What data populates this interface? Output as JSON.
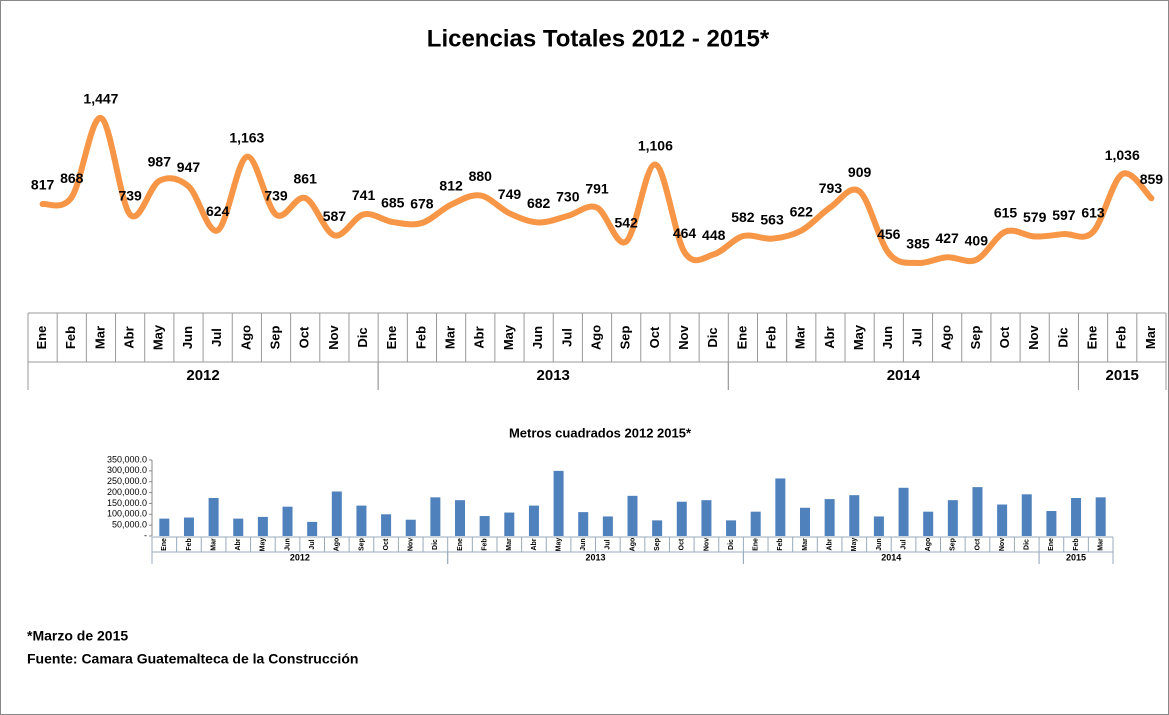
{
  "chart_data": [
    {
      "type": "line",
      "title": "Licencias Totales 2012 - 2015*",
      "color": "#f79646",
      "categories": [
        "Ene",
        "Feb",
        "Mar",
        "Abr",
        "May",
        "Jun",
        "Jul",
        "Ago",
        "Sep",
        "Oct",
        "Nov",
        "Dic",
        "Ene",
        "Feb",
        "Mar",
        "Abr",
        "May",
        "Jun",
        "Jul",
        "Ago",
        "Sep",
        "Oct",
        "Nov",
        "Dic",
        "Ene",
        "Feb",
        "Mar",
        "Abr",
        "May",
        "Jun",
        "Jul",
        "Ago",
        "Sep",
        "Oct",
        "Nov",
        "Dic",
        "Ene",
        "Feb",
        "Mar"
      ],
      "category_years": [
        "2012",
        "2012",
        "2012",
        "2012",
        "2012",
        "2012",
        "2012",
        "2012",
        "2012",
        "2012",
        "2012",
        "2012",
        "2013",
        "2013",
        "2013",
        "2013",
        "2013",
        "2013",
        "2013",
        "2013",
        "2013",
        "2013",
        "2013",
        "2013",
        "2014",
        "2014",
        "2014",
        "2014",
        "2014",
        "2014",
        "2014",
        "2014",
        "2014",
        "2014",
        "2014",
        "2014",
        "2015",
        "2015",
        "2015"
      ],
      "values": [
        817,
        868,
        1447,
        739,
        987,
        947,
        624,
        1163,
        739,
        861,
        587,
        741,
        685,
        678,
        812,
        880,
        749,
        682,
        730,
        791,
        542,
        1106,
        464,
        448,
        582,
        563,
        622,
        793,
        909,
        456,
        385,
        427,
        409,
        615,
        579,
        597,
        613,
        1036,
        859
      ],
      "value_labels": [
        "817",
        "868",
        "1,447",
        "739",
        "987",
        "947",
        "624",
        "1,163",
        "739",
        "861",
        "587",
        "741",
        "685",
        "678",
        "812",
        "880",
        "749",
        "682",
        "730",
        "791",
        "542",
        "1,106",
        "464",
        "448",
        "582",
        "563",
        "622",
        "793",
        "909",
        "456",
        "385",
        "427",
        "409",
        "615",
        "579",
        "597",
        "613",
        "1,036",
        "859"
      ]
    },
    {
      "type": "bar",
      "title": "Metros cuadrados 2012 2015*",
      "color": "#4f81bd",
      "categories": [
        "Ene",
        "Feb",
        "Mar",
        "Abr",
        "May",
        "Jun",
        "Jul",
        "Ago",
        "Sep",
        "Oct",
        "Nov",
        "Dic",
        "Ene",
        "Feb",
        "Mar",
        "Abr",
        "May",
        "Jun",
        "Jul",
        "Ago",
        "Sep",
        "Oct",
        "Nov",
        "Dic",
        "Ene",
        "Feb",
        "Mar",
        "Abr",
        "May",
        "Jun",
        "Jul",
        "Ago",
        "Sep",
        "Oct",
        "Nov",
        "Dic",
        "Ene",
        "Feb",
        "Mar"
      ],
      "category_years": [
        "2012",
        "2012",
        "2012",
        "2012",
        "2012",
        "2012",
        "2012",
        "2012",
        "2012",
        "2012",
        "2012",
        "2012",
        "2013",
        "2013",
        "2013",
        "2013",
        "2013",
        "2013",
        "2013",
        "2013",
        "2013",
        "2013",
        "2013",
        "2013",
        "2014",
        "2014",
        "2014",
        "2014",
        "2014",
        "2014",
        "2014",
        "2014",
        "2014",
        "2014",
        "2014",
        "2014",
        "2015",
        "2015",
        "2015"
      ],
      "values": [
        80000,
        85000,
        175000,
        80000,
        88000,
        135000,
        65000,
        205000,
        140000,
        100000,
        75000,
        178000,
        165000,
        92000,
        108000,
        140000,
        300000,
        110000,
        90000,
        185000,
        72000,
        158000,
        165000,
        72000,
        112000,
        265000,
        130000,
        170000,
        188000,
        90000,
        222000,
        112000,
        165000,
        225000,
        145000,
        192000,
        115000,
        175000,
        178000
      ],
      "ylim": [
        0,
        350000
      ],
      "yticks": [
        {
          "value": 0,
          "label": "-"
        },
        {
          "value": 50000,
          "label": "50,000.0"
        },
        {
          "value": 100000,
          "label": "100,000.0"
        },
        {
          "value": 150000,
          "label": "150,000.0"
        },
        {
          "value": 200000,
          "label": "200,000.0"
        },
        {
          "value": 250000,
          "label": "250,000.0"
        },
        {
          "value": 300000,
          "label": "300,000.0"
        },
        {
          "value": 350000,
          "label": "350,000.0"
        }
      ]
    }
  ],
  "notes": [
    "*Marzo de 2015",
    "Fuente: Camara Guatemalteca de la Construcción"
  ]
}
